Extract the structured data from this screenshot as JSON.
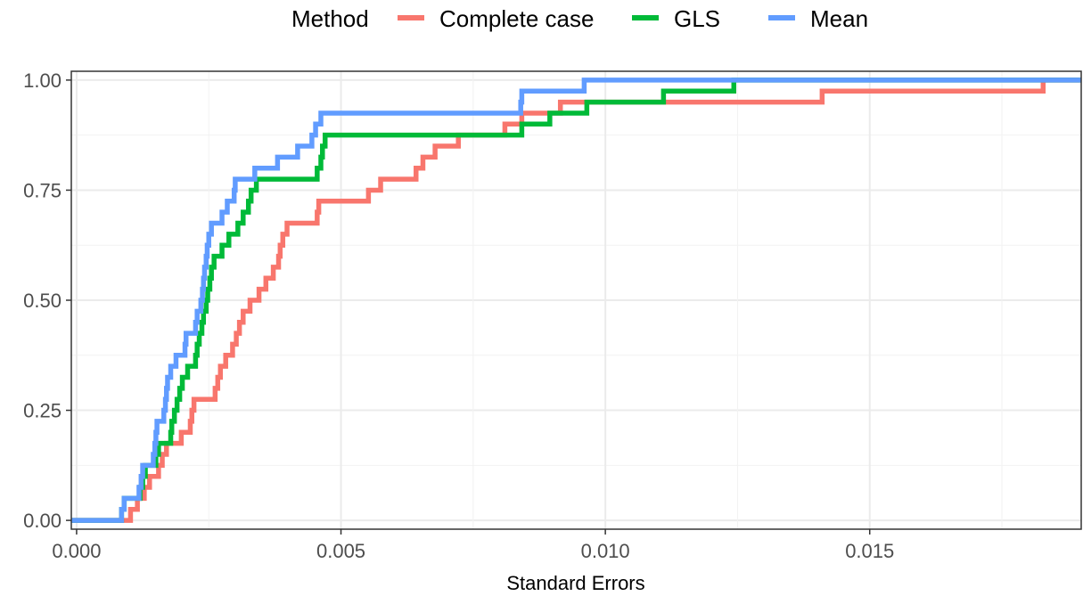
{
  "legend": {
    "title": "Method",
    "entries": [
      {
        "label": "Complete case",
        "color": "#F8766D"
      },
      {
        "label": "GLS",
        "color": "#00BA38"
      },
      {
        "label": "Mean",
        "color": "#619CFF"
      }
    ],
    "placement": "top"
  },
  "chart_data": {
    "type": "line",
    "step": true,
    "title": "",
    "xlabel": "Standard Errors",
    "ylabel": "",
    "xlim": [
      -0.0001,
      0.019
    ],
    "ylim": [
      -0.02,
      1.02
    ],
    "x_ticks": [
      0.0,
      0.005,
      0.01,
      0.015
    ],
    "x_tick_labels": [
      "0.000",
      "0.005",
      "0.010",
      "0.015"
    ],
    "y_ticks": [
      0.0,
      0.25,
      0.5,
      0.75,
      1.0
    ],
    "y_tick_labels": [
      "0.00",
      "0.25",
      "0.50",
      "0.75",
      "1.00"
    ],
    "grid": true,
    "series": [
      {
        "name": "Complete case",
        "color": "#F8766D",
        "points": [
          [
            -0.0001,
            0.0
          ],
          [
            0.00102,
            0.0
          ],
          [
            0.00102,
            0.025
          ],
          [
            0.00115,
            0.025
          ],
          [
            0.00115,
            0.05
          ],
          [
            0.00128,
            0.05
          ],
          [
            0.00128,
            0.075
          ],
          [
            0.00138,
            0.075
          ],
          [
            0.00138,
            0.1
          ],
          [
            0.00155,
            0.1
          ],
          [
            0.00155,
            0.125
          ],
          [
            0.00162,
            0.125
          ],
          [
            0.00162,
            0.15
          ],
          [
            0.0017,
            0.15
          ],
          [
            0.0017,
            0.175
          ],
          [
            0.00198,
            0.175
          ],
          [
            0.00198,
            0.2
          ],
          [
            0.00215,
            0.2
          ],
          [
            0.00215,
            0.225
          ],
          [
            0.00218,
            0.225
          ],
          [
            0.00218,
            0.25
          ],
          [
            0.00222,
            0.25
          ],
          [
            0.00222,
            0.275
          ],
          [
            0.00262,
            0.275
          ],
          [
            0.00262,
            0.3
          ],
          [
            0.00267,
            0.3
          ],
          [
            0.00267,
            0.325
          ],
          [
            0.00272,
            0.325
          ],
          [
            0.00272,
            0.35
          ],
          [
            0.00282,
            0.35
          ],
          [
            0.00282,
            0.375
          ],
          [
            0.00295,
            0.375
          ],
          [
            0.00295,
            0.4
          ],
          [
            0.00302,
            0.4
          ],
          [
            0.00302,
            0.425
          ],
          [
            0.00308,
            0.425
          ],
          [
            0.00308,
            0.45
          ],
          [
            0.00315,
            0.45
          ],
          [
            0.00315,
            0.475
          ],
          [
            0.00328,
            0.475
          ],
          [
            0.00328,
            0.5
          ],
          [
            0.00345,
            0.5
          ],
          [
            0.00345,
            0.525
          ],
          [
            0.00358,
            0.525
          ],
          [
            0.00358,
            0.55
          ],
          [
            0.00372,
            0.55
          ],
          [
            0.00372,
            0.575
          ],
          [
            0.00382,
            0.575
          ],
          [
            0.00382,
            0.6
          ],
          [
            0.00385,
            0.6
          ],
          [
            0.00385,
            0.625
          ],
          [
            0.0039,
            0.625
          ],
          [
            0.0039,
            0.65
          ],
          [
            0.00398,
            0.65
          ],
          [
            0.00398,
            0.675
          ],
          [
            0.00455,
            0.675
          ],
          [
            0.00455,
            0.7
          ],
          [
            0.00458,
            0.7
          ],
          [
            0.00458,
            0.725
          ],
          [
            0.00552,
            0.725
          ],
          [
            0.00552,
            0.75
          ],
          [
            0.00575,
            0.75
          ],
          [
            0.00575,
            0.775
          ],
          [
            0.00642,
            0.775
          ],
          [
            0.00642,
            0.8
          ],
          [
            0.00655,
            0.8
          ],
          [
            0.00655,
            0.825
          ],
          [
            0.00678,
            0.825
          ],
          [
            0.00678,
            0.85
          ],
          [
            0.00722,
            0.85
          ],
          [
            0.00722,
            0.875
          ],
          [
            0.0081,
            0.875
          ],
          [
            0.0081,
            0.9
          ],
          [
            0.00842,
            0.9
          ],
          [
            0.00842,
            0.925
          ],
          [
            0.00915,
            0.925
          ],
          [
            0.00915,
            0.95
          ],
          [
            0.0141,
            0.95
          ],
          [
            0.0141,
            0.975
          ],
          [
            0.01828,
            0.975
          ],
          [
            0.01828,
            1.0
          ],
          [
            0.019,
            1.0
          ]
        ]
      },
      {
        "name": "GLS",
        "color": "#00BA38",
        "points": [
          [
            -0.0001,
            0.0
          ],
          [
            0.00085,
            0.0
          ],
          [
            0.00085,
            0.025
          ],
          [
            0.0009,
            0.025
          ],
          [
            0.0009,
            0.05
          ],
          [
            0.0012,
            0.05
          ],
          [
            0.0012,
            0.075
          ],
          [
            0.00125,
            0.075
          ],
          [
            0.00125,
            0.1
          ],
          [
            0.0013,
            0.1
          ],
          [
            0.0013,
            0.125
          ],
          [
            0.0015,
            0.125
          ],
          [
            0.0015,
            0.15
          ],
          [
            0.00155,
            0.15
          ],
          [
            0.00155,
            0.175
          ],
          [
            0.00178,
            0.175
          ],
          [
            0.00178,
            0.2
          ],
          [
            0.0018,
            0.2
          ],
          [
            0.0018,
            0.225
          ],
          [
            0.00185,
            0.225
          ],
          [
            0.00185,
            0.25
          ],
          [
            0.0019,
            0.25
          ],
          [
            0.0019,
            0.275
          ],
          [
            0.00195,
            0.275
          ],
          [
            0.00195,
            0.3
          ],
          [
            0.002,
            0.3
          ],
          [
            0.002,
            0.325
          ],
          [
            0.0021,
            0.325
          ],
          [
            0.0021,
            0.35
          ],
          [
            0.00225,
            0.35
          ],
          [
            0.00225,
            0.375
          ],
          [
            0.00228,
            0.375
          ],
          [
            0.00228,
            0.4
          ],
          [
            0.00232,
            0.4
          ],
          [
            0.00232,
            0.425
          ],
          [
            0.00237,
            0.425
          ],
          [
            0.00237,
            0.45
          ],
          [
            0.0024,
            0.45
          ],
          [
            0.0024,
            0.475
          ],
          [
            0.00245,
            0.475
          ],
          [
            0.00245,
            0.5
          ],
          [
            0.00248,
            0.5
          ],
          [
            0.00248,
            0.525
          ],
          [
            0.00252,
            0.525
          ],
          [
            0.00252,
            0.55
          ],
          [
            0.00255,
            0.55
          ],
          [
            0.00255,
            0.575
          ],
          [
            0.0026,
            0.575
          ],
          [
            0.0026,
            0.6
          ],
          [
            0.00275,
            0.6
          ],
          [
            0.00275,
            0.625
          ],
          [
            0.00288,
            0.625
          ],
          [
            0.00288,
            0.65
          ],
          [
            0.00305,
            0.65
          ],
          [
            0.00305,
            0.675
          ],
          [
            0.00315,
            0.675
          ],
          [
            0.00315,
            0.7
          ],
          [
            0.00325,
            0.7
          ],
          [
            0.00325,
            0.725
          ],
          [
            0.0033,
            0.725
          ],
          [
            0.0033,
            0.75
          ],
          [
            0.0034,
            0.75
          ],
          [
            0.0034,
            0.775
          ],
          [
            0.00455,
            0.775
          ],
          [
            0.00455,
            0.8
          ],
          [
            0.00462,
            0.8
          ],
          [
            0.00462,
            0.825
          ],
          [
            0.00465,
            0.825
          ],
          [
            0.00465,
            0.85
          ],
          [
            0.0047,
            0.85
          ],
          [
            0.0047,
            0.875
          ],
          [
            0.00842,
            0.875
          ],
          [
            0.00842,
            0.9
          ],
          [
            0.00895,
            0.9
          ],
          [
            0.00895,
            0.925
          ],
          [
            0.00965,
            0.925
          ],
          [
            0.00965,
            0.95
          ],
          [
            0.0111,
            0.95
          ],
          [
            0.0111,
            0.975
          ],
          [
            0.01243,
            0.975
          ],
          [
            0.01243,
            1.0
          ],
          [
            0.019,
            1.0
          ]
        ]
      },
      {
        "name": "Mean",
        "color": "#619CFF",
        "points": [
          [
            -0.0001,
            0.0
          ],
          [
            0.00085,
            0.0
          ],
          [
            0.00085,
            0.025
          ],
          [
            0.0009,
            0.025
          ],
          [
            0.0009,
            0.05
          ],
          [
            0.00118,
            0.05
          ],
          [
            0.00118,
            0.075
          ],
          [
            0.00122,
            0.075
          ],
          [
            0.00122,
            0.1
          ],
          [
            0.00125,
            0.1
          ],
          [
            0.00125,
            0.125
          ],
          [
            0.00145,
            0.125
          ],
          [
            0.00145,
            0.15
          ],
          [
            0.00148,
            0.15
          ],
          [
            0.00148,
            0.175
          ],
          [
            0.0015,
            0.175
          ],
          [
            0.0015,
            0.2
          ],
          [
            0.00152,
            0.2
          ],
          [
            0.00152,
            0.225
          ],
          [
            0.00165,
            0.225
          ],
          [
            0.00165,
            0.25
          ],
          [
            0.00168,
            0.25
          ],
          [
            0.00168,
            0.275
          ],
          [
            0.0017,
            0.275
          ],
          [
            0.0017,
            0.3
          ],
          [
            0.00172,
            0.3
          ],
          [
            0.00172,
            0.325
          ],
          [
            0.00178,
            0.325
          ],
          [
            0.00178,
            0.35
          ],
          [
            0.00188,
            0.35
          ],
          [
            0.00188,
            0.375
          ],
          [
            0.00205,
            0.375
          ],
          [
            0.00205,
            0.4
          ],
          [
            0.00207,
            0.4
          ],
          [
            0.00207,
            0.425
          ],
          [
            0.00225,
            0.425
          ],
          [
            0.00225,
            0.45
          ],
          [
            0.00228,
            0.45
          ],
          [
            0.00228,
            0.475
          ],
          [
            0.00235,
            0.475
          ],
          [
            0.00235,
            0.5
          ],
          [
            0.00238,
            0.5
          ],
          [
            0.00238,
            0.525
          ],
          [
            0.0024,
            0.525
          ],
          [
            0.0024,
            0.55
          ],
          [
            0.00242,
            0.55
          ],
          [
            0.00242,
            0.575
          ],
          [
            0.00245,
            0.575
          ],
          [
            0.00245,
            0.6
          ],
          [
            0.00247,
            0.6
          ],
          [
            0.00247,
            0.625
          ],
          [
            0.0025,
            0.625
          ],
          [
            0.0025,
            0.65
          ],
          [
            0.00255,
            0.65
          ],
          [
            0.00255,
            0.675
          ],
          [
            0.00275,
            0.675
          ],
          [
            0.00275,
            0.7
          ],
          [
            0.00285,
            0.7
          ],
          [
            0.00285,
            0.725
          ],
          [
            0.00298,
            0.725
          ],
          [
            0.00298,
            0.75
          ],
          [
            0.003,
            0.75
          ],
          [
            0.003,
            0.775
          ],
          [
            0.00337,
            0.775
          ],
          [
            0.00337,
            0.8
          ],
          [
            0.0038,
            0.8
          ],
          [
            0.0038,
            0.825
          ],
          [
            0.00418,
            0.825
          ],
          [
            0.00418,
            0.85
          ],
          [
            0.00445,
            0.85
          ],
          [
            0.00445,
            0.875
          ],
          [
            0.00452,
            0.875
          ],
          [
            0.00452,
            0.9
          ],
          [
            0.00462,
            0.9
          ],
          [
            0.00462,
            0.925
          ],
          [
            0.0084,
            0.925
          ],
          [
            0.0084,
            0.95
          ],
          [
            0.00842,
            0.95
          ],
          [
            0.00842,
            0.975
          ],
          [
            0.0096,
            0.975
          ],
          [
            0.0096,
            1.0
          ],
          [
            0.019,
            1.0
          ]
        ]
      }
    ]
  }
}
